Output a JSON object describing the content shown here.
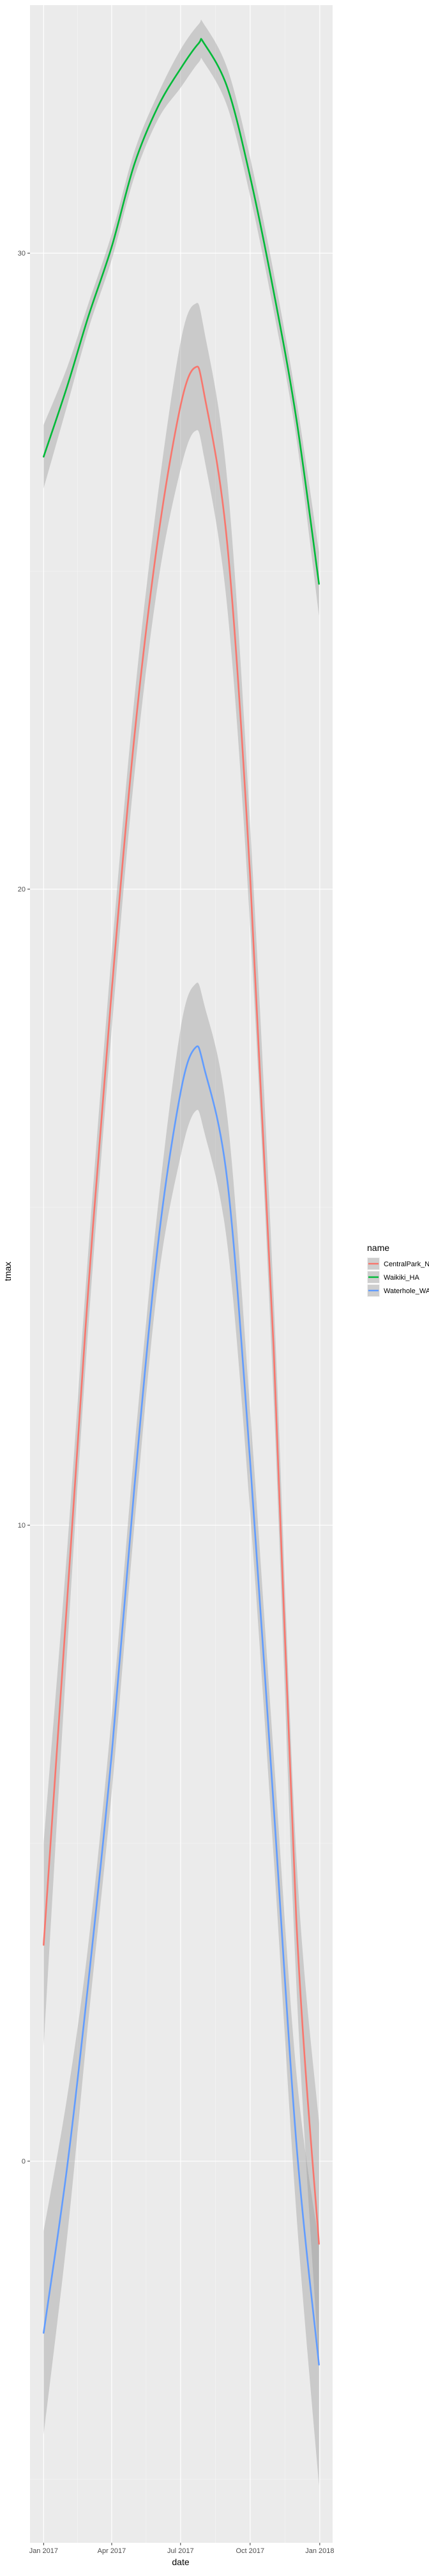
{
  "chart_data": {
    "type": "line",
    "xlabel": "date",
    "ylabel": "tmax",
    "x_tick_labels": [
      "Jan 2017",
      "Apr 2017",
      "Jul 2017",
      "Oct 2017",
      "Jan 2018"
    ],
    "x_ticks": [
      "2017-01-01",
      "2017-04-01",
      "2017-07-01",
      "2017-10-01",
      "2018-01-01"
    ],
    "y_ticks": [
      0,
      10,
      20,
      30
    ],
    "y_tick_labels": [
      "0",
      "10",
      "20",
      "30"
    ],
    "xlim": [
      "2016-12-14",
      "2018-01-18"
    ],
    "ylim": [
      -6.0,
      33.9
    ],
    "grid": true,
    "confidence_band": true,
    "legend": {
      "title": "name",
      "position": "right"
    },
    "series": [
      {
        "name": "CentralPark_NY",
        "color": "#F8766D",
        "x": [
          "2017-01-01",
          "2017-02-01",
          "2017-03-01",
          "2017-04-01",
          "2017-05-01",
          "2017-06-01",
          "2017-07-01",
          "2017-07-20",
          "2017-08-01",
          "2017-09-01",
          "2017-10-01",
          "2017-11-01",
          "2017-12-01",
          "2017-12-31"
        ],
        "y": [
          3.4,
          8.8,
          13.7,
          18.4,
          22.4,
          25.5,
          27.6,
          28.2,
          27.8,
          25.4,
          20.2,
          12.8,
          3.8,
          -1.3
        ],
        "lower": [
          1.8,
          8.0,
          13.1,
          17.8,
          21.8,
          24.8,
          26.6,
          27.2,
          26.8,
          24.4,
          19.4,
          12.0,
          2.8,
          -3.2
        ],
        "upper": [
          5.0,
          9.6,
          14.3,
          19.0,
          23.0,
          26.2,
          28.6,
          29.2,
          28.8,
          26.4,
          21.0,
          13.6,
          4.8,
          0.6
        ]
      },
      {
        "name": "Waikiki_HA",
        "color": "#00BA38",
        "x": [
          "2017-01-01",
          "2017-02-01",
          "2017-03-01",
          "2017-04-01",
          "2017-05-01",
          "2017-06-01",
          "2017-07-01",
          "2017-07-25",
          "2017-08-01",
          "2017-09-01",
          "2017-10-01",
          "2017-11-01",
          "2017-12-01",
          "2017-12-31"
        ],
        "y": [
          26.8,
          27.9,
          29.0,
          30.1,
          31.4,
          32.3,
          32.9,
          33.3,
          33.3,
          32.6,
          31.2,
          29.4,
          27.4,
          24.8
        ],
        "lower": [
          26.3,
          27.6,
          28.8,
          29.9,
          31.2,
          32.1,
          32.6,
          33.0,
          33.0,
          32.3,
          30.9,
          29.1,
          27.1,
          24.3
        ],
        "upper": [
          27.3,
          28.2,
          29.2,
          30.3,
          31.6,
          32.5,
          33.2,
          33.6,
          33.6,
          32.9,
          31.5,
          29.7,
          27.7,
          25.3
        ]
      },
      {
        "name": "Waterhole_WA",
        "color": "#619CFF",
        "x": [
          "2017-01-01",
          "2017-02-01",
          "2017-03-01",
          "2017-04-01",
          "2017-05-01",
          "2017-06-01",
          "2017-07-01",
          "2017-07-20",
          "2017-08-01",
          "2017-09-01",
          "2017-10-01",
          "2017-11-01",
          "2017-12-01",
          "2017-12-31"
        ],
        "y": [
          -2.7,
          -0.1,
          2.8,
          6.4,
          10.6,
          14.4,
          16.8,
          17.5,
          17.2,
          15.4,
          11.0,
          5.6,
          0.3,
          -3.2
        ],
        "lower": [
          -4.3,
          -1.2,
          2.2,
          5.8,
          10.0,
          13.8,
          15.8,
          16.5,
          16.2,
          14.4,
          10.2,
          4.8,
          -0.8,
          -5.1
        ],
        "upper": [
          -1.1,
          1.0,
          3.4,
          7.0,
          11.2,
          15.0,
          17.8,
          18.5,
          18.2,
          16.4,
          11.8,
          6.4,
          1.4,
          -1.3
        ]
      }
    ]
  }
}
